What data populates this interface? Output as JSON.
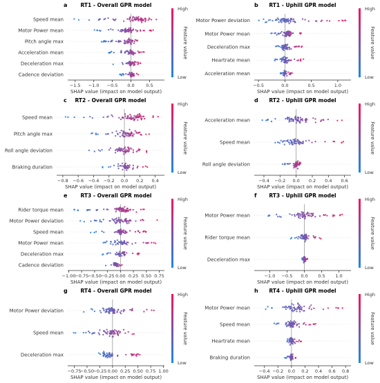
{
  "colorbar": {
    "high": "High",
    "low": "Low",
    "label": "Feature value",
    "color_low": "#1e88e5",
    "color_high": "#ff0d57"
  },
  "chart_data": [
    {
      "type": "scatter",
      "panel": "a",
      "title": "RT1 - Overall GPR model",
      "xlabel": "SHAP value (impact on model output)",
      "xlim": [
        -1.7,
        0.9
      ],
      "ticks": [
        -1.5,
        -1.0,
        -0.5,
        0.0,
        0.5
      ],
      "tick_labels": [
        "−1.5",
        "−1.0",
        "−0.5",
        "0.0",
        "0.5"
      ],
      "features": [
        {
          "name": "Speed mean",
          "range": [
            -1.6,
            0.8
          ],
          "center": 0.2
        },
        {
          "name": "Motor Power mean",
          "range": [
            -1.0,
            0.6
          ],
          "center": -0.1
        },
        {
          "name": "Pitch angle max",
          "range": [
            -0.8,
            0.4
          ],
          "center": -0.05
        },
        {
          "name": "Acceleration mean",
          "range": [
            -0.6,
            0.4
          ],
          "center": 0.0
        },
        {
          "name": "Deceleration max",
          "range": [
            -0.5,
            0.3
          ],
          "center": 0.0
        },
        {
          "name": "Cadence deviation",
          "range": [
            -0.3,
            0.2
          ],
          "center": 0.0
        }
      ]
    },
    {
      "type": "scatter",
      "panel": "b",
      "title": "RT1 - Uphill GPR model",
      "xlabel": "SHAP value (impact on model output)",
      "xlim": [
        -0.58,
        1.25
      ],
      "ticks": [
        -0.5,
        0.0,
        0.5,
        1.0
      ],
      "tick_labels": [
        "−0.5",
        "0.0",
        "0.5",
        "1.0"
      ],
      "features": [
        {
          "name": "Motor Power deviation",
          "range": [
            -0.5,
            1.2
          ],
          "center": 0.0
        },
        {
          "name": "Motor Power mean",
          "range": [
            -0.3,
            0.35
          ],
          "center": 0.05
        },
        {
          "name": "Deceleration max",
          "range": [
            -0.2,
            0.35
          ],
          "center": 0.0
        },
        {
          "name": "Heartrate mean",
          "range": [
            -0.2,
            0.35
          ],
          "center": 0.0
        },
        {
          "name": "Acceleration mean",
          "range": [
            -0.1,
            0.15
          ],
          "center": 0.0
        }
      ]
    },
    {
      "type": "scatter",
      "panel": "c",
      "title": "RT2 - Overall GPR model",
      "xlabel": "SHAP value (impact on model output)",
      "xlim": [
        -0.88,
        0.52
      ],
      "ticks": [
        -0.8,
        -0.6,
        -0.4,
        -0.2,
        0.0,
        0.2,
        0.4
      ],
      "tick_labels": [
        "−0.8",
        "−0.6",
        "−0.4",
        "−0.2",
        "0.0",
        "0.2",
        "0.4"
      ],
      "features": [
        {
          "name": "Speed mean",
          "range": [
            -0.8,
            0.45
          ],
          "center": 0.1
        },
        {
          "name": "Pitch angle max",
          "range": [
            -0.45,
            0.35
          ],
          "center": 0.05
        },
        {
          "name": "Roll angle deviation",
          "range": [
            -0.5,
            0.3
          ],
          "center": 0.0
        },
        {
          "name": "Braking duration",
          "range": [
            -0.3,
            0.3
          ],
          "center": 0.0
        }
      ]
    },
    {
      "type": "scatter",
      "panel": "d",
      "title": "RT2 - Uphill GPR model",
      "xlabel": "SHAP value (impact on model output)",
      "xlim": [
        -0.52,
        0.68
      ],
      "ticks": [
        -0.4,
        -0.2,
        0.0,
        0.2,
        0.4,
        0.6
      ],
      "tick_labels": [
        "−0.4",
        "−0.2",
        "0.0",
        "0.2",
        "0.4",
        "0.6"
      ],
      "features": [
        {
          "name": "Acceleration mean",
          "range": [
            -0.45,
            0.6
          ],
          "center": 0.0
        },
        {
          "name": "Speed mean",
          "range": [
            -0.35,
            0.6
          ],
          "center": 0.0
        },
        {
          "name": "Roll angle deviation",
          "range": [
            -0.2,
            0.1
          ],
          "center": 0.0
        }
      ]
    },
    {
      "type": "scatter",
      "panel": "e",
      "title": "RT3 - Overall GPR model",
      "xlabel": "SHAP value (impact on model output)",
      "xlim": [
        -1.02,
        0.85
      ],
      "ticks": [
        -1.0,
        -0.75,
        -0.5,
        -0.25,
        0.0,
        0.25,
        0.5,
        0.75
      ],
      "tick_labels": [
        "−1.00",
        "−0.75",
        "−0.50",
        "−0.25",
        "0.00",
        "0.25",
        "0.50",
        "0.75"
      ],
      "features": [
        {
          "name": "Rider torque mean",
          "range": [
            -0.9,
            0.5
          ],
          "center": 0.05
        },
        {
          "name": "Motor Power deviation",
          "range": [
            -0.8,
            0.75
          ],
          "center": 0.0
        },
        {
          "name": "Speed mean",
          "range": [
            -0.6,
            0.5
          ],
          "center": 0.0
        },
        {
          "name": "Motor Power mean",
          "range": [
            -0.4,
            0.75
          ],
          "center": 0.0
        },
        {
          "name": "Deceleration max",
          "range": [
            -0.35,
            0.45
          ],
          "center": 0.0
        },
        {
          "name": "Cadence deviation",
          "range": [
            -0.3,
            0.1
          ],
          "center": -0.1
        }
      ]
    },
    {
      "type": "scatter",
      "panel": "f",
      "title": "RT3 - Uphill GPR model",
      "xlabel": "SHAP value (impact on model output)",
      "xlim": [
        -1.45,
        1.35
      ],
      "ticks": [
        -1.0,
        -0.5,
        0.0,
        0.5,
        1.0
      ],
      "tick_labels": [
        "−1.0",
        "−0.5",
        "0.0",
        "0.5",
        "1.0"
      ],
      "features": [
        {
          "name": "Motor Power mean",
          "range": [
            -1.3,
            1.2
          ],
          "center": 0.0
        },
        {
          "name": "Rider torque mean",
          "range": [
            -0.4,
            0.5
          ],
          "center": 0.0
        },
        {
          "name": "Deceleration max",
          "range": [
            -0.1,
            0.1
          ],
          "center": 0.0
        }
      ]
    },
    {
      "type": "scatter",
      "panel": "g",
      "title": "RT4 - Overall GPR model",
      "xlabel": "SHAP value (impact on model output)",
      "xlim": [
        -0.88,
        1.02
      ],
      "ticks": [
        -0.75,
        -0.5,
        -0.25,
        0.0,
        0.25,
        0.5,
        0.75,
        1.0
      ],
      "tick_labels": [
        "−0.75",
        "−0.50",
        "−0.25",
        "0.00",
        "0.25",
        "0.50",
        "0.75",
        "1.00"
      ],
      "features": [
        {
          "name": "Motor Power deviation",
          "range": [
            -0.6,
            0.95
          ],
          "center": 0.0
        },
        {
          "name": "Speed mean",
          "range": [
            -0.8,
            0.6
          ],
          "center": 0.0
        },
        {
          "name": "Deceleration max",
          "range": [
            -0.3,
            0.55
          ],
          "center": -0.1
        }
      ]
    },
    {
      "type": "scatter",
      "panel": "h",
      "title": "RT4 - Uphill GPR model",
      "xlabel": "SHAP value (impact on model output)",
      "xlim": [
        -0.55,
        0.88
      ],
      "ticks": [
        -0.4,
        -0.2,
        0.0,
        0.2,
        0.4,
        0.6,
        0.8
      ],
      "tick_labels": [
        "−0.4",
        "−0.2",
        "0.0",
        "0.2",
        "0.4",
        "0.6",
        "0.8"
      ],
      "features": [
        {
          "name": "Motor Power mean",
          "range": [
            -0.45,
            0.8
          ],
          "center": 0.05
        },
        {
          "name": "Speed mean",
          "range": [
            -0.3,
            0.4
          ],
          "center": 0.0
        },
        {
          "name": "Heartrate mean",
          "range": [
            -0.1,
            0.15
          ],
          "center": 0.0
        },
        {
          "name": "Braking duration",
          "range": [
            -0.1,
            0.1
          ],
          "center": 0.0
        }
      ]
    }
  ]
}
